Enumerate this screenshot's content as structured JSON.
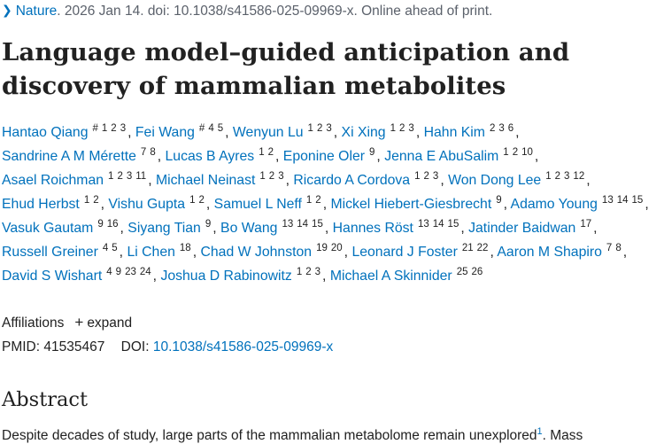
{
  "citation": {
    "journal": "Nature",
    "rest": ". 2026 Jan 14. doi: 10.1038/s41586-025-09969-x. Online ahead of print."
  },
  "title": "Language model–guided anticipation and discovery of mammalian metabolites",
  "authors": [
    {
      "name": "Hantao Qiang",
      "sups": [
        "#",
        "1",
        "2",
        "3"
      ]
    },
    {
      "name": "Fei Wang",
      "sups": [
        "#",
        "4",
        "5"
      ]
    },
    {
      "name": "Wenyun Lu",
      "sups": [
        "1",
        "2",
        "3"
      ]
    },
    {
      "name": "Xi Xing",
      "sups": [
        "1",
        "2",
        "3"
      ]
    },
    {
      "name": "Hahn Kim",
      "sups": [
        "2",
        "3",
        "6"
      ]
    },
    {
      "name": "Sandrine A M Mérette",
      "sups": [
        "7",
        "8"
      ]
    },
    {
      "name": "Lucas B Ayres",
      "sups": [
        "1",
        "2"
      ]
    },
    {
      "name": "Eponine Oler",
      "sups": [
        "9"
      ]
    },
    {
      "name": "Jenna E AbuSalim",
      "sups": [
        "1",
        "2",
        "10"
      ]
    },
    {
      "name": "Asael Roichman",
      "sups": [
        "1",
        "2",
        "3",
        "11"
      ]
    },
    {
      "name": "Michael Neinast",
      "sups": [
        "1",
        "2",
        "3"
      ]
    },
    {
      "name": "Ricardo A Cordova",
      "sups": [
        "1",
        "2",
        "3"
      ]
    },
    {
      "name": "Won Dong Lee",
      "sups": [
        "1",
        "2",
        "3",
        "12"
      ]
    },
    {
      "name": "Ehud Herbst",
      "sups": [
        "1",
        "2"
      ]
    },
    {
      "name": "Vishu Gupta",
      "sups": [
        "1",
        "2"
      ]
    },
    {
      "name": "Samuel L Neff",
      "sups": [
        "1",
        "2"
      ]
    },
    {
      "name": "Mickel Hiebert-Giesbrecht",
      "sups": [
        "9"
      ]
    },
    {
      "name": "Adamo Young",
      "sups": [
        "13",
        "14",
        "15"
      ]
    },
    {
      "name": "Vasuk Gautam",
      "sups": [
        "9",
        "16"
      ]
    },
    {
      "name": "Siyang Tian",
      "sups": [
        "9"
      ]
    },
    {
      "name": "Bo Wang",
      "sups": [
        "13",
        "14",
        "15"
      ]
    },
    {
      "name": "Hannes Röst",
      "sups": [
        "13",
        "14",
        "15"
      ]
    },
    {
      "name": "Jatinder Baidwan",
      "sups": [
        "17"
      ]
    },
    {
      "name": "Russell Greiner",
      "sups": [
        "4",
        "5"
      ]
    },
    {
      "name": "Li Chen",
      "sups": [
        "18"
      ]
    },
    {
      "name": "Chad W Johnston",
      "sups": [
        "19",
        "20"
      ]
    },
    {
      "name": "Leonard J Foster",
      "sups": [
        "21",
        "22"
      ]
    },
    {
      "name": "Aaron M Shapiro",
      "sups": [
        "7",
        "8"
      ]
    },
    {
      "name": "David S Wishart",
      "sups": [
        "4",
        "9",
        "23",
        "24"
      ]
    },
    {
      "name": "Joshua D Rabinowitz",
      "sups": [
        "1",
        "2",
        "3"
      ]
    },
    {
      "name": "Michael A Skinnider",
      "sups": [
        "25",
        "26"
      ]
    }
  ],
  "affiliations": {
    "label": "Affiliations",
    "expand_icon": "plus-icon",
    "expand_label": "expand"
  },
  "ids": {
    "pmid_label": "PMID:",
    "pmid": "41535467",
    "doi_label": "DOI:",
    "doi": "10.1038/s41586-025-09969-x"
  },
  "abstract": {
    "heading": "Abstract",
    "text": "Despite decades of study, large parts of the mammalian metabolome remain unexplored",
    "ref": "1",
    "text_after": ". Mass"
  },
  "colors": {
    "link": "#0071bc",
    "text": "#212121",
    "muted": "#5b616b"
  }
}
